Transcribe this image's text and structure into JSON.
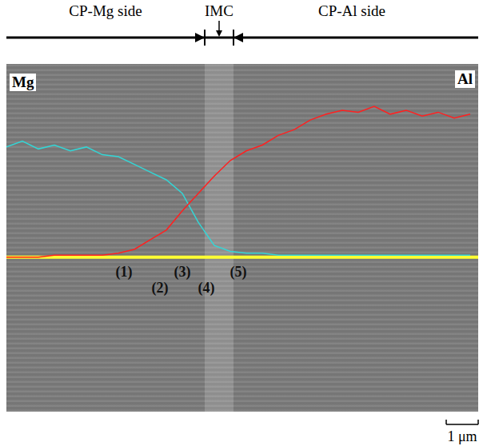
{
  "chart_data": {
    "type": "line",
    "header": {
      "left": "CP-Mg side",
      "middle": "IMC",
      "right": "CP-Al side"
    },
    "x": [
      0,
      0.5,
      1,
      1.5,
      2,
      2.5,
      3,
      3.5,
      4,
      4.5,
      5,
      5.5,
      6,
      6.5,
      7,
      7.5,
      8,
      8.5,
      9,
      9.5,
      10,
      10.5,
      11,
      11.5,
      12,
      12.5,
      13,
      13.5,
      14,
      14.5
    ],
    "series": [
      {
        "name": "Mg",
        "color": "#33d6d6",
        "values": [
          57,
          60,
          56,
          58,
          55,
          57,
          53,
          52,
          48,
          44,
          40,
          33,
          18,
          6,
          3,
          2,
          2,
          1,
          1,
          1,
          1,
          1,
          1,
          1,
          1,
          1,
          1,
          1,
          1,
          1
        ]
      },
      {
        "name": "Al",
        "color": "#ff2020",
        "values": [
          0,
          0,
          0,
          1,
          1,
          1,
          1,
          2,
          4,
          9,
          14,
          24,
          33,
          42,
          50,
          55,
          58,
          63,
          66,
          71,
          74,
          76,
          75,
          78,
          74,
          76,
          73,
          75,
          72,
          74
        ]
      }
    ],
    "xlim": [
      0,
      14.75
    ],
    "ylim": [
      -80,
      100
    ],
    "tick_labels": false,
    "grid": false,
    "baseline": 0,
    "imc_range": [
      6.2,
      7.1
    ],
    "annotations": [
      "(1)",
      "(2)",
      "(3)",
      "(4)",
      "(5)"
    ],
    "scale_bar": {
      "value": 1,
      "label": "1 μm"
    }
  }
}
